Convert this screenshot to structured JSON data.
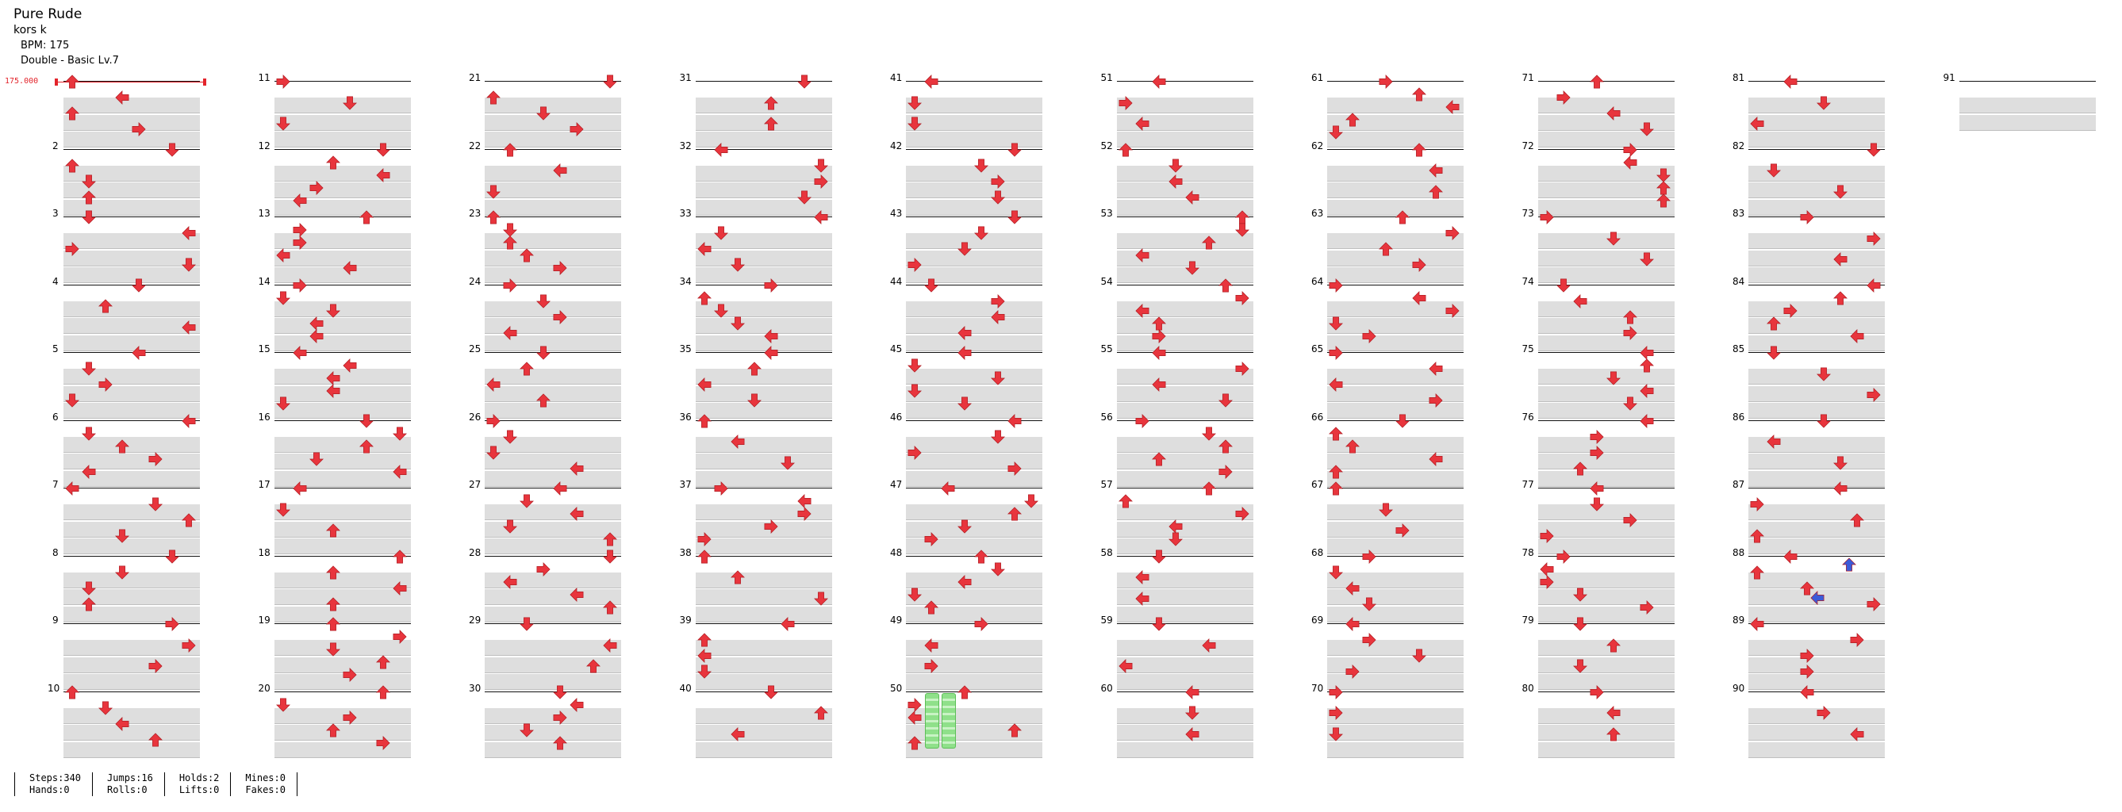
{
  "song": {
    "title": "Pure Rude",
    "artist": "kors k",
    "bpm_label": "BPM: 175",
    "difficulty": "Double - Basic Lv.7"
  },
  "bpm_marker": "175.000",
  "measures": [
    "2",
    "3",
    "4",
    "5",
    "6",
    "7",
    "8",
    "9",
    "10",
    "11",
    "12",
    "13",
    "14",
    "15",
    "16",
    "17",
    "18",
    "19",
    "20",
    "21",
    "22",
    "23",
    "24",
    "25",
    "26",
    "27",
    "28",
    "29",
    "30",
    "31",
    "32",
    "33",
    "34",
    "35",
    "36",
    "37",
    "38",
    "39",
    "40",
    "41",
    "42",
    "43",
    "44",
    "45",
    "46",
    "47",
    "48",
    "49",
    "50",
    "51",
    "52",
    "53",
    "54",
    "55",
    "56",
    "57",
    "58",
    "59",
    "60",
    "61",
    "62",
    "63",
    "64",
    "65",
    "66",
    "67",
    "68",
    "69",
    "70",
    "71",
    "72",
    "73",
    "74",
    "75",
    "76",
    "77",
    "78",
    "79",
    "80",
    "81",
    "82",
    "83",
    "84",
    "85",
    "86",
    "87",
    "88",
    "89",
    "90",
    "91"
  ],
  "colors": {
    "arrow": "#e8353d",
    "arrow_alt": "#3a5bd9",
    "hold": "#8fe08a",
    "bpm": "#e3242b"
  },
  "stats": {
    "steps": "Steps:340",
    "hands": "Hands:0",
    "jumps": "Jumps:16",
    "rolls": "Rolls:0",
    "holds": "Holds:2",
    "lifts": "Lifts:0",
    "mines": "Mines:0",
    "fakes": "Fakes:0"
  }
}
